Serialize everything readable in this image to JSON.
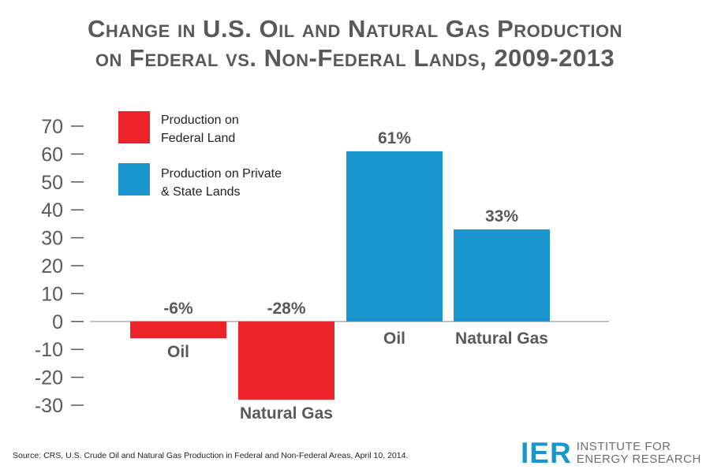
{
  "title": {
    "line1": "Change in U.S. Oil and Natural Gas Production",
    "line2": "on Federal vs. Non-Federal Lands, 2009-2013"
  },
  "legend": {
    "federal": {
      "line1": "Production on",
      "line2": "Federal Land",
      "color": "#ee2229"
    },
    "private": {
      "line1": "Production on Private",
      "line2": "& State Lands",
      "color": "#1b95cd"
    }
  },
  "chart_data": {
    "type": "bar",
    "yticks": [
      70,
      60,
      50,
      40,
      30,
      20,
      10,
      0,
      -10,
      -20,
      -30
    ],
    "ylim": [
      -30,
      70
    ],
    "grid": false,
    "legend_position": "top-left",
    "bars": [
      {
        "category": "Oil",
        "series": "federal",
        "value": -6,
        "label": "-6%"
      },
      {
        "category": "Natural Gas",
        "series": "federal",
        "value": -28,
        "label": "-28%"
      },
      {
        "category": "Oil",
        "series": "private",
        "value": 61,
        "label": "61%"
      },
      {
        "category": "Natural Gas",
        "series": "private",
        "value": 33,
        "label": "33%"
      }
    ]
  },
  "source": "Source: CRS, U.S. Crude Oil and Natural Gas Production in Federal and Non-Federal Areas, April 10, 2014.",
  "logo": {
    "mark": "IER",
    "line1": "INSTITUTE FOR",
    "line2": "ENERGY RESEARCH"
  }
}
